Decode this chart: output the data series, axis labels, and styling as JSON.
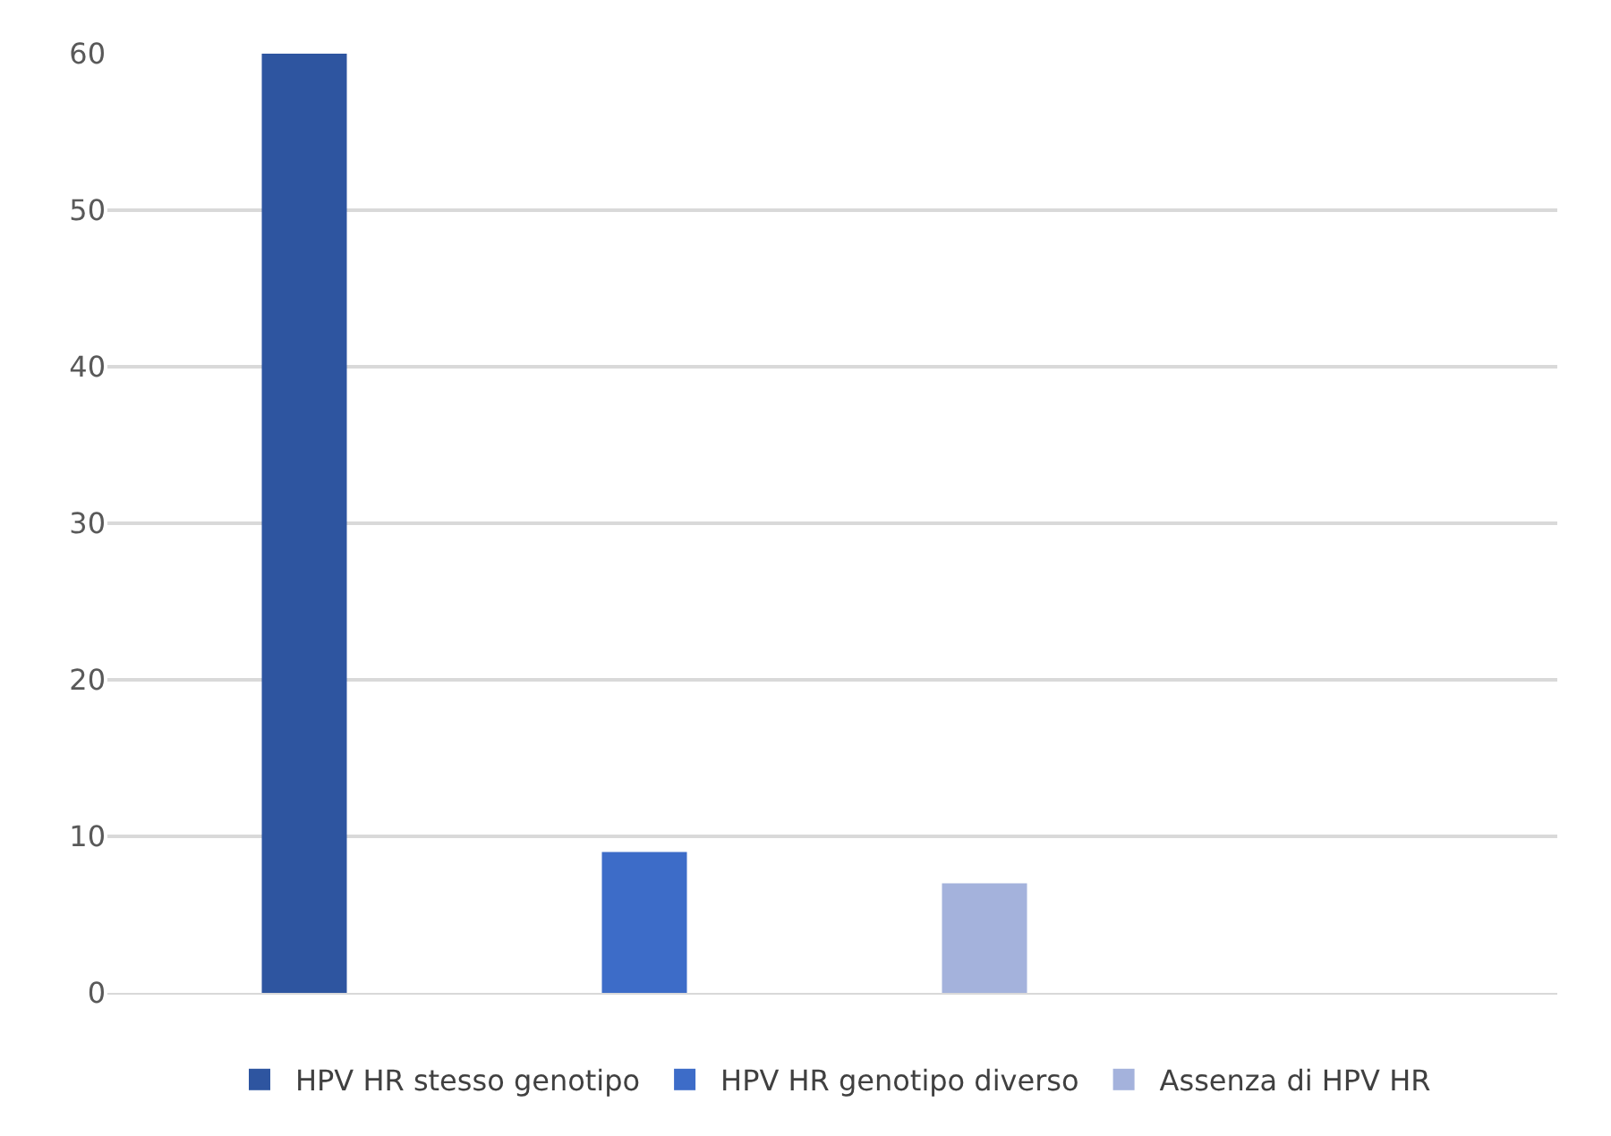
{
  "chart_data": {
    "type": "bar",
    "categories": [
      null
    ],
    "series": [
      {
        "name": "HPV HR stesso genotipo",
        "color": "#2e55a0",
        "values": [
          60
        ]
      },
      {
        "name": "HPV HR genotipo diverso",
        "color": "#3d6cc8",
        "values": [
          9
        ]
      },
      {
        "name": "Assenza di HPV HR",
        "color": "#a4b2dc",
        "values": [
          7
        ]
      }
    ],
    "ylim": [
      0,
      60
    ],
    "yticks": [
      0,
      10,
      20,
      30,
      40,
      50,
      60
    ],
    "grid": "y",
    "legend": "bottom"
  }
}
